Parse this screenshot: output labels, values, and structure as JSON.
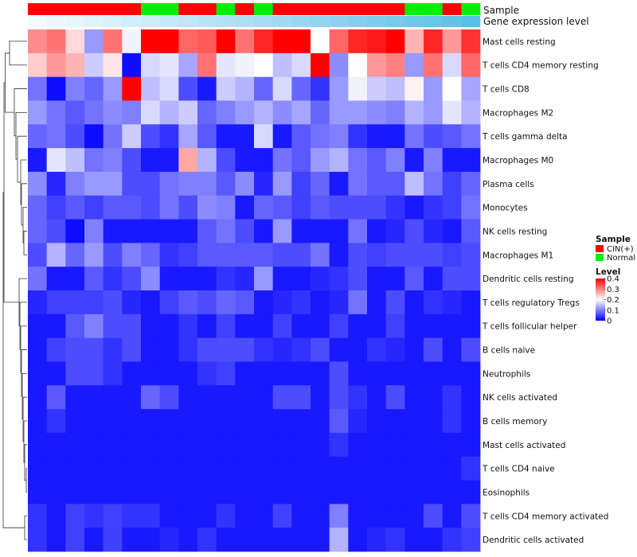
{
  "chart_data": {
    "type": "heatmap",
    "tracks": {
      "sample_label": "Sample",
      "gene_label": "Gene expression level"
    },
    "sample_annotation": [
      "CIN(+)",
      "CIN(+)",
      "CIN(+)",
      "CIN(+)",
      "CIN(+)",
      "CIN(+)",
      "Normal",
      "Normal",
      "CIN(+)",
      "CIN(+)",
      "Normal",
      "CIN(+)",
      "Normal",
      "CIN(+)",
      "CIN(+)",
      "CIN(+)",
      "CIN(+)",
      "CIN(+)",
      "CIN(+)",
      "CIN(+)",
      "Normal",
      "Normal",
      "CIN(+)",
      "Normal"
    ],
    "gene_expression": [
      0.02,
      0.04,
      0.06,
      0.08,
      0.1,
      0.12,
      0.14,
      0.16,
      0.18,
      0.2,
      0.22,
      0.24,
      0.26,
      0.28,
      0.3,
      0.32,
      0.34,
      0.36,
      0.38,
      0.4,
      0.42,
      0.44,
      0.46,
      0.48
    ],
    "rows": [
      {
        "label": "Mast cells resting",
        "values": [
          0.29,
          0.31,
          0.23,
          0.12,
          0.31,
          0.19,
          0.4,
          0.4,
          0.32,
          0.33,
          0.4,
          0.31,
          0.37,
          0.4,
          0.4,
          0.2,
          0.32,
          0.37,
          0.38,
          0.4,
          0.26,
          0.37,
          0.28,
          0.36
        ]
      },
      {
        "label": "T cells CD4 memory resting",
        "values": [
          0.24,
          0.28,
          0.26,
          0.16,
          0.22,
          0.01,
          0.17,
          0.18,
          0.13,
          0.31,
          0.18,
          0.19,
          0.2,
          0.15,
          0.17,
          0.4,
          0.11,
          0.2,
          0.28,
          0.3,
          0.12,
          0.31,
          0.17,
          0.32
        ]
      },
      {
        "label": "T cells CD8",
        "values": [
          0.09,
          0.01,
          0.1,
          0.08,
          0.12,
          0.4,
          0.15,
          0.17,
          0.06,
          0.02,
          0.16,
          0.14,
          0.08,
          0.17,
          0.08,
          0.04,
          0.12,
          0.19,
          0.16,
          0.15,
          0.21,
          0.12,
          0.2,
          0.13
        ]
      },
      {
        "label": "Macrophages M2",
        "values": [
          0.12,
          0.09,
          0.07,
          0.09,
          0.11,
          0.1,
          0.17,
          0.14,
          0.16,
          0.08,
          0.1,
          0.12,
          0.14,
          0.11,
          0.13,
          0.08,
          0.12,
          0.12,
          0.11,
          0.1,
          0.14,
          0.12,
          0.18,
          0.14
        ]
      },
      {
        "label": "T cells gamma delta",
        "values": [
          0.08,
          0.09,
          0.06,
          0.01,
          0.09,
          0.16,
          0.06,
          0.04,
          0.13,
          0.07,
          0.02,
          0.02,
          0.17,
          0.02,
          0.07,
          0.09,
          0.1,
          0.04,
          0.02,
          0.02,
          0.09,
          0.06,
          0.07,
          0.09
        ]
      },
      {
        "label": "Macrophages M0",
        "values": [
          0.02,
          0.18,
          0.15,
          0.09,
          0.1,
          0.06,
          0.02,
          0.02,
          0.27,
          0.14,
          0.06,
          0.02,
          0.02,
          0.09,
          0.07,
          0.12,
          0.14,
          0.09,
          0.07,
          0.1,
          0.02,
          0.1,
          0.02,
          0.02
        ]
      },
      {
        "label": "Plasma cells",
        "values": [
          0.11,
          0.03,
          0.1,
          0.12,
          0.12,
          0.06,
          0.06,
          0.09,
          0.1,
          0.1,
          0.07,
          0.11,
          0.03,
          0.12,
          0.05,
          0.08,
          0.02,
          0.09,
          0.07,
          0.07,
          0.15,
          0.09,
          0.05,
          0.08
        ]
      },
      {
        "label": "Monocytes",
        "values": [
          0.08,
          0.05,
          0.07,
          0.05,
          0.07,
          0.07,
          0.06,
          0.09,
          0.06,
          0.11,
          0.1,
          0.02,
          0.08,
          0.07,
          0.05,
          0.07,
          0.06,
          0.06,
          0.06,
          0.04,
          0.02,
          0.04,
          0.05,
          0.09
        ]
      },
      {
        "label": "NK cells resting",
        "values": [
          0.08,
          0.06,
          0.01,
          0.1,
          0.02,
          0.02,
          0.02,
          0.02,
          0.02,
          0.07,
          0.09,
          0.06,
          0.02,
          0.12,
          0.02,
          0.02,
          0.02,
          0.09,
          0.02,
          0.03,
          0.06,
          0.03,
          0.02,
          0.07
        ]
      },
      {
        "label": "Macrophages M1",
        "values": [
          0.06,
          0.14,
          0.08,
          0.12,
          0.06,
          0.1,
          0.08,
          0.04,
          0.05,
          0.07,
          0.07,
          0.07,
          0.07,
          0.06,
          0.06,
          0.09,
          0.02,
          0.06,
          0.05,
          0.06,
          0.06,
          0.06,
          0.05,
          0.06
        ]
      },
      {
        "label": "Dendritic cells resting",
        "values": [
          0.09,
          0.02,
          0.02,
          0.07,
          0.04,
          0.06,
          0.11,
          0.02,
          0.02,
          0.02,
          0.04,
          0.03,
          0.12,
          0.02,
          0.02,
          0.03,
          0.04,
          0.06,
          0.02,
          0.02,
          0.07,
          0.02,
          0.06,
          0.06
        ]
      },
      {
        "label": "T cells regulatory  Tregs",
        "values": [
          0.03,
          0.05,
          0.05,
          0.05,
          0.06,
          0.03,
          0.02,
          0.05,
          0.07,
          0.06,
          0.08,
          0.07,
          0.02,
          0.03,
          0.04,
          0.02,
          0.03,
          0.09,
          0.02,
          0.06,
          0.02,
          0.04,
          0.03,
          0.02
        ]
      },
      {
        "label": "T cells follicular helper",
        "values": [
          0.02,
          0.02,
          0.07,
          0.1,
          0.06,
          0.06,
          0.02,
          0.02,
          0.04,
          0.02,
          0.05,
          0.02,
          0.02,
          0.05,
          0.02,
          0.02,
          0.05,
          0.02,
          0.02,
          0.05,
          0.02,
          0.02,
          0.02,
          0.02
        ]
      },
      {
        "label": "B cells naive",
        "values": [
          0.02,
          0.05,
          0.06,
          0.06,
          0.04,
          0.06,
          0.02,
          0.02,
          0.04,
          0.06,
          0.06,
          0.06,
          0.04,
          0.03,
          0.04,
          0.06,
          0.02,
          0.02,
          0.04,
          0.03,
          0.02,
          0.06,
          0.02,
          0.06
        ]
      },
      {
        "label": "Neutrophils",
        "values": [
          0.02,
          0.02,
          0.06,
          0.06,
          0.04,
          0.02,
          0.02,
          0.02,
          0.02,
          0.04,
          0.05,
          0.02,
          0.02,
          0.02,
          0.02,
          0.02,
          0.06,
          0.02,
          0.02,
          0.02,
          0.02,
          0.02,
          0.02,
          0.02
        ]
      },
      {
        "label": "NK cells activated",
        "values": [
          0.02,
          0.07,
          0.02,
          0.02,
          0.02,
          0.02,
          0.08,
          0.06,
          0.02,
          0.02,
          0.02,
          0.02,
          0.02,
          0.06,
          0.06,
          0.02,
          0.06,
          0.04,
          0.02,
          0.06,
          0.02,
          0.02,
          0.04,
          0.02
        ]
      },
      {
        "label": "B cells memory",
        "values": [
          0.02,
          0.04,
          0.02,
          0.02,
          0.02,
          0.02,
          0.02,
          0.02,
          0.02,
          0.02,
          0.02,
          0.02,
          0.02,
          0.02,
          0.02,
          0.02,
          0.07,
          0.03,
          0.02,
          0.02,
          0.02,
          0.02,
          0.04,
          0.02
        ]
      },
      {
        "label": "Mast cells activated",
        "values": [
          0.02,
          0.02,
          0.02,
          0.02,
          0.02,
          0.02,
          0.02,
          0.02,
          0.02,
          0.02,
          0.02,
          0.02,
          0.02,
          0.02,
          0.02,
          0.02,
          0.04,
          0.02,
          0.02,
          0.02,
          0.02,
          0.02,
          0.02,
          0.02
        ]
      },
      {
        "label": "T cells CD4 naive",
        "values": [
          0.02,
          0.02,
          0.02,
          0.02,
          0.02,
          0.02,
          0.02,
          0.02,
          0.02,
          0.02,
          0.02,
          0.02,
          0.02,
          0.02,
          0.02,
          0.02,
          0.02,
          0.02,
          0.02,
          0.02,
          0.02,
          0.02,
          0.02,
          0.04
        ]
      },
      {
        "label": "Eosinophils",
        "values": [
          0.02,
          0.02,
          0.02,
          0.02,
          0.02,
          0.02,
          0.02,
          0.02,
          0.02,
          0.02,
          0.02,
          0.02,
          0.02,
          0.02,
          0.02,
          0.02,
          0.02,
          0.02,
          0.02,
          0.02,
          0.02,
          0.02,
          0.02,
          0.02
        ]
      },
      {
        "label": "T cells CD4 memory activated",
        "values": [
          0.04,
          0.02,
          0.05,
          0.04,
          0.05,
          0.04,
          0.04,
          0.02,
          0.02,
          0.02,
          0.04,
          0.02,
          0.02,
          0.05,
          0.02,
          0.02,
          0.1,
          0.02,
          0.02,
          0.02,
          0.02,
          0.06,
          0.02,
          0.06
        ]
      },
      {
        "label": "Dendritic cells activated",
        "values": [
          0.04,
          0.02,
          0.05,
          0.02,
          0.05,
          0.02,
          0.02,
          0.03,
          0.02,
          0.04,
          0.02,
          0.02,
          0.02,
          0.02,
          0.02,
          0.02,
          0.14,
          0.02,
          0.03,
          0.04,
          0.02,
          0.02,
          0.04,
          0.05
        ]
      }
    ],
    "dendrogram_order": [
      0,
      1,
      2,
      3,
      4,
      5,
      6,
      7,
      8,
      9,
      10,
      11,
      12,
      13,
      14,
      15,
      16,
      17,
      18,
      19,
      20,
      21
    ],
    "legend": {
      "sample_title": "Sample",
      "sample_items": [
        {
          "label": "CIN(+)",
          "color": "#ff0000"
        },
        {
          "label": "Normal",
          "color": "#00ee00"
        }
      ],
      "level_title": "Level",
      "level_ticks": [
        "0.4",
        "0.3",
        "0.2",
        "0.1",
        "0"
      ],
      "range": [
        0,
        0.4
      ]
    },
    "colors": {
      "low": "#0000ff",
      "mid": "#ffffff",
      "high": "#ff0000",
      "gene_low": "#f4fbfd",
      "gene_high": "#5bc0e6"
    }
  }
}
